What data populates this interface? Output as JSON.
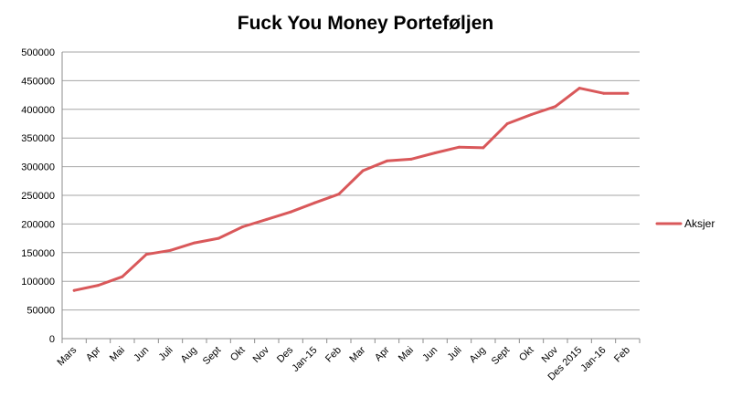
{
  "chart_data": {
    "type": "line",
    "title": "Fuck You Money Porteføljen",
    "xlabel": "",
    "ylabel": "",
    "categories": [
      "Mars",
      "Apr",
      "Mai",
      "Jun",
      "Juli",
      "Aug",
      "Sept",
      "Okt",
      "Nov",
      "Des",
      "Jan-15",
      "Feb",
      "Mar",
      "Apr",
      "Mai",
      "Jun",
      "Juli",
      "Aug",
      "Sept",
      "Okt",
      "Nov",
      "Des 2015",
      "Jan-16",
      "Feb"
    ],
    "ylim": [
      0,
      500000
    ],
    "yticks": [
      0,
      50000,
      100000,
      150000,
      200000,
      250000,
      300000,
      350000,
      400000,
      450000,
      500000
    ],
    "ytick_labels": [
      "0",
      "50000",
      "100000",
      "150000",
      "200000",
      "250000",
      "300000",
      "350000",
      "400000",
      "450000",
      "500000"
    ],
    "grid": "horizontal",
    "legend_position": "right",
    "series": [
      {
        "name": "Aksjer",
        "color": "#d9585a",
        "values": [
          84000,
          93000,
          108000,
          147000,
          154000,
          167000,
          175000,
          195000,
          208000,
          221000,
          237000,
          252000,
          293000,
          310000,
          313000,
          324000,
          334000,
          333000,
          375000,
          391000,
          405000,
          437000,
          428000,
          428000
        ]
      }
    ]
  }
}
